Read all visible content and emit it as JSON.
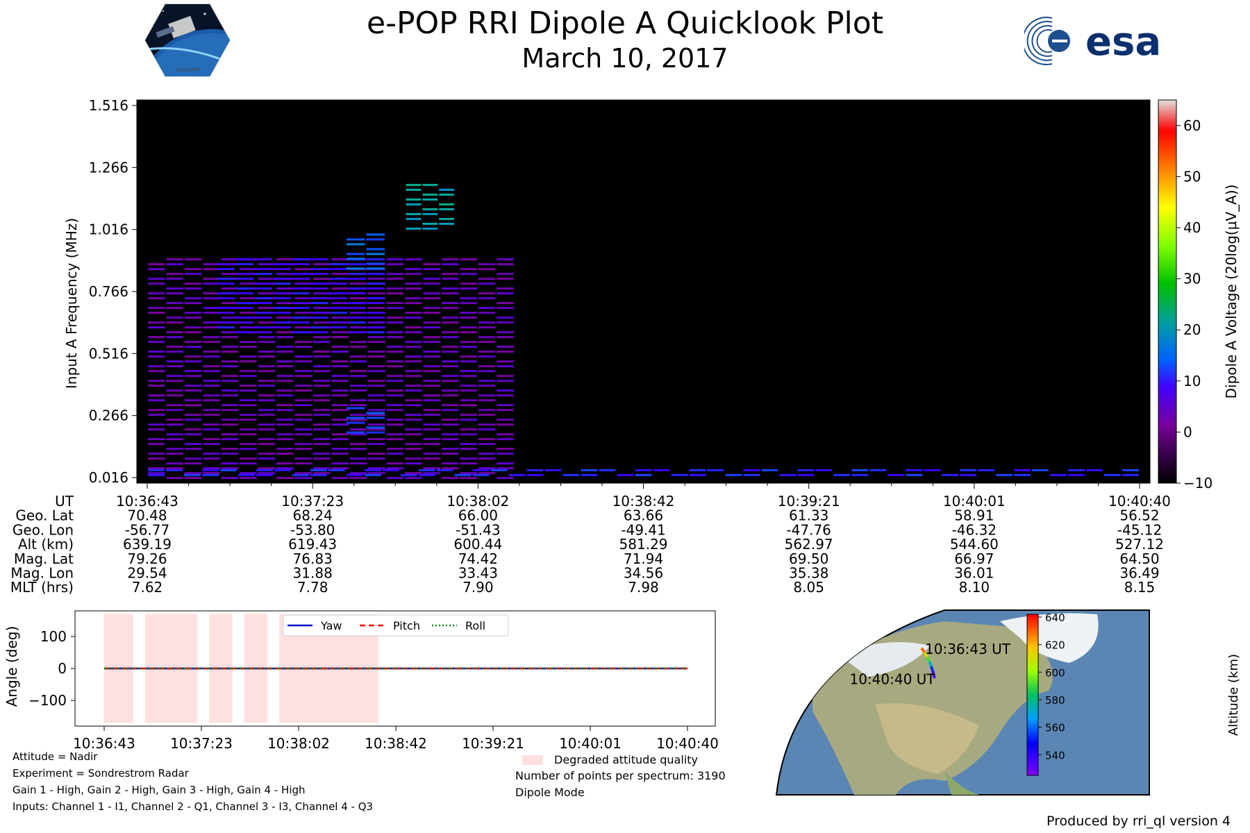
{
  "header": {
    "title": "e-POP RRI Dipole A Quicklook Plot",
    "subtitle": "March 10, 2017",
    "mission_logo_text": "CASSIOPE",
    "agency_logo_text": "esa"
  },
  "spectrogram": {
    "ylabel": "Input A Frequency (MHz)",
    "yticks": [
      "0.016",
      "0.266",
      "0.516",
      "0.766",
      "1.016",
      "1.266",
      "1.516"
    ],
    "colorbar_label": "Dipole A Voltage (20log(μV_A))",
    "colorbar_ticks": [
      "−10",
      "0",
      "10",
      "20",
      "30",
      "40",
      "50",
      "60"
    ]
  },
  "ephemeris": {
    "row_labels": [
      "UT",
      "Geo. Lat",
      "Geo. Lon",
      "Alt (km)",
      "Mag. Lat",
      "Mag. Lon",
      "MLT (hrs)"
    ],
    "columns": [
      [
        "10:36:43",
        "70.48",
        "-56.77",
        "639.19",
        "79.26",
        "29.54",
        "7.62"
      ],
      [
        "10:37:23",
        "68.24",
        "-53.80",
        "619.43",
        "76.83",
        "31.88",
        "7.78"
      ],
      [
        "10:38:02",
        "66.00",
        "-51.43",
        "600.44",
        "74.42",
        "33.43",
        "7.90"
      ],
      [
        "10:38:42",
        "63.66",
        "-49.41",
        "581.29",
        "71.94",
        "34.56",
        "7.98"
      ],
      [
        "10:39:21",
        "61.33",
        "-47.76",
        "562.97",
        "69.50",
        "35.38",
        "8.05"
      ],
      [
        "10:40:01",
        "58.91",
        "-46.32",
        "544.60",
        "66.97",
        "36.01",
        "8.10"
      ],
      [
        "10:40:40",
        "56.52",
        "-45.12",
        "527.12",
        "64.50",
        "36.49",
        "8.15"
      ]
    ]
  },
  "chart_data": [
    {
      "type": "heatmap",
      "title": "e-POP RRI Dipole A Quicklook Plot",
      "subtitle": "March 10, 2017",
      "ylabel": "Input A Frequency (MHz)",
      "ylim": [
        0.016,
        1.516
      ],
      "x_ticks": [
        "10:36:43",
        "10:37:23",
        "10:38:02",
        "10:38:42",
        "10:39:21",
        "10:40:01",
        "10:40:40"
      ],
      "colorbar": {
        "label": "Dipole A Voltage (20log(μV_A))",
        "range": [
          -10,
          65
        ]
      },
      "bands": [
        {
          "t_start": 0.0,
          "t_end": 0.37,
          "f_min": 0.016,
          "f_max": 0.9,
          "level": 4
        },
        {
          "t_start": 0.07,
          "t_end": 0.24,
          "f_min": 0.6,
          "f_max": 0.9,
          "level": 10
        },
        {
          "t_start": 0.2,
          "t_end": 0.24,
          "f_min": 0.85,
          "f_max": 1.0,
          "level": 16
        },
        {
          "t_start": 0.26,
          "t_end": 0.31,
          "f_min": 1.02,
          "f_max": 1.2,
          "level": 22
        },
        {
          "t_start": 0.2,
          "t_end": 0.24,
          "f_min": 0.2,
          "f_max": 0.3,
          "level": 14
        },
        {
          "t_start": 0.0,
          "t_end": 1.0,
          "f_min": 0.016,
          "f_max": 0.05,
          "level": 12
        }
      ]
    },
    {
      "type": "line",
      "ylabel": "Angle (deg)",
      "ylim": [
        -180,
        180
      ],
      "yticks": [
        "100",
        "0",
        "−100"
      ],
      "x_ticks": [
        "10:36:43",
        "10:37:23",
        "10:38:02",
        "10:38:42",
        "10:39:21",
        "10:40:01",
        "10:40:40"
      ],
      "series": [
        {
          "name": "Yaw",
          "color": "#0000cc",
          "style": "solid",
          "values": [
            0,
            0,
            0,
            0,
            0,
            0,
            0
          ]
        },
        {
          "name": "Pitch",
          "color": "#ff0000",
          "style": "dashed",
          "values": [
            0,
            0,
            0,
            0,
            0,
            0,
            0
          ]
        },
        {
          "name": "Roll",
          "color": "#008000",
          "style": "dotted",
          "values": [
            0,
            0,
            0,
            0,
            0,
            0,
            0
          ]
        }
      ],
      "legend": "top-center",
      "degraded_label": "Degraded attitude quality",
      "degraded_intervals": [
        [
          0.0,
          0.05
        ],
        [
          0.07,
          0.16
        ],
        [
          0.18,
          0.22
        ],
        [
          0.24,
          0.28
        ],
        [
          0.3,
          0.47
        ]
      ]
    },
    {
      "type": "scatter",
      "colorbar": {
        "label": "Altitude (km)",
        "ticks": [
          540,
          560,
          580,
          600,
          620,
          640
        ]
      },
      "track": [
        {
          "label": "10:36:43 UT",
          "geo_lat": 70.48,
          "geo_lon": -56.77,
          "alt": 639.19
        },
        {
          "geo_lat": 68.24,
          "geo_lon": -53.8,
          "alt": 619.43
        },
        {
          "geo_lat": 66.0,
          "geo_lon": -51.43,
          "alt": 600.44
        },
        {
          "geo_lat": 63.66,
          "geo_lon": -49.41,
          "alt": 581.29
        },
        {
          "geo_lat": 61.33,
          "geo_lon": -47.76,
          "alt": 562.97
        },
        {
          "geo_lat": 58.91,
          "geo_lon": -46.32,
          "alt": 544.6
        },
        {
          "label": "10:40:40 UT",
          "geo_lat": 56.52,
          "geo_lon": -45.12,
          "alt": 527.12
        }
      ]
    }
  ],
  "footer": {
    "notes_left": [
      "Attitude = Nadir",
      "Experiment = Sondrestrom Radar",
      "Gain 1 - High, Gain 2 - High, Gain 3 - High, Gain 4 - High",
      "Inputs: Channel 1 - I1, Channel 2 - Q1, Channel 3 - I3, Channel 4 - Q3"
    ],
    "notes_right": [
      "Number of points per spectrum: 3190",
      "Dipole Mode"
    ],
    "produced_by": "Produced by rri_ql version 4"
  }
}
